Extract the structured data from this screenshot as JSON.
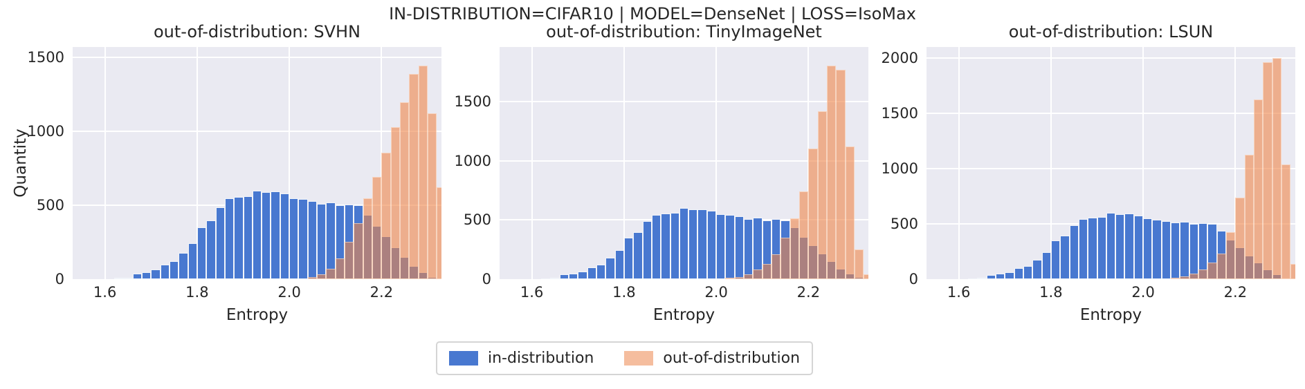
{
  "figure": {
    "title": "IN-DISTRIBUTION=CIFAR10 | MODEL=DenseNet | LOSS=IsoMax",
    "background": "#ffffff",
    "axes_background": "#eaeaf2",
    "grid_color": "#ffffff",
    "text_color": "#262626"
  },
  "colors": {
    "in_distribution": "#4878d0",
    "out_of_distribution_fill": "rgba(238,133,74,0.60)",
    "out_of_distribution_legend": "#f5bd9e"
  },
  "legend": {
    "items": [
      {
        "label": "in-distribution",
        "color_key": "in_distribution"
      },
      {
        "label": "out-of-distribution",
        "color_key": "out_of_distribution_legend"
      }
    ]
  },
  "chart_data": [
    {
      "type": "bar",
      "subtype": "histogram",
      "title": "out-of-distribution: SVHN",
      "xlabel": "Entropy",
      "ylabel": "Quantity",
      "xlim": [
        1.53,
        2.33
      ],
      "ylim": [
        0,
        1570
      ],
      "xticks": [
        {
          "v": 1.6,
          "label": "1.6"
        },
        {
          "v": 1.8,
          "label": "1.8"
        },
        {
          "v": 2.0,
          "label": "2.0"
        },
        {
          "v": 2.2,
          "label": "2.2"
        }
      ],
      "yticks": [
        {
          "v": 0,
          "label": "0"
        },
        {
          "v": 500,
          "label": "500"
        },
        {
          "v": 1000,
          "label": "1000"
        },
        {
          "v": 1500,
          "label": "1500"
        }
      ],
      "bin_width": 0.02,
      "grid": true,
      "series": [
        {
          "name": "in-distribution",
          "bins_start": 1.62,
          "values": [
            8,
            10,
            38,
            48,
            65,
            100,
            120,
            178,
            245,
            350,
            395,
            488,
            545,
            555,
            562,
            600,
            588,
            592,
            578,
            548,
            540,
            528,
            510,
            518,
            498,
            505,
            498,
            435,
            358,
            288,
            215,
            150,
            88,
            45,
            15
          ]
        },
        {
          "name": "out-of-distribution",
          "bins_start": 2.04,
          "values": [
            15,
            35,
            70,
            140,
            250,
            380,
            545,
            690,
            855,
            1030,
            1195,
            1390,
            1445,
            1120,
            620,
            150
          ]
        }
      ]
    },
    {
      "type": "bar",
      "subtype": "histogram",
      "title": "out-of-distribution: TinyImageNet",
      "xlabel": "Entropy",
      "ylabel": "",
      "xlim": [
        1.53,
        2.33
      ],
      "ylim": [
        0,
        1960
      ],
      "xticks": [
        {
          "v": 1.6,
          "label": "1.6"
        },
        {
          "v": 1.8,
          "label": "1.8"
        },
        {
          "v": 2.0,
          "label": "2.0"
        },
        {
          "v": 2.2,
          "label": "2.2"
        }
      ],
      "yticks": [
        {
          "v": 0,
          "label": "0"
        },
        {
          "v": 500,
          "label": "500"
        },
        {
          "v": 1000,
          "label": "1000"
        },
        {
          "v": 1500,
          "label": "1500"
        }
      ],
      "bin_width": 0.02,
      "grid": true,
      "series": [
        {
          "name": "in-distribution",
          "bins_start": 1.62,
          "values": [
            8,
            10,
            38,
            48,
            65,
            100,
            120,
            178,
            245,
            350,
            395,
            488,
            545,
            555,
            562,
            600,
            588,
            592,
            578,
            548,
            540,
            528,
            510,
            518,
            498,
            505,
            498,
            435,
            358,
            288,
            215,
            150,
            88,
            45,
            15
          ]
        },
        {
          "name": "out-of-distribution",
          "bins_start": 2.02,
          "values": [
            10,
            20,
            40,
            80,
            130,
            210,
            350,
            515,
            740,
            1100,
            1420,
            1800,
            1770,
            1120,
            250,
            40
          ]
        }
      ]
    },
    {
      "type": "bar",
      "subtype": "histogram",
      "title": "out-of-distribution: LSUN",
      "xlabel": "Entropy",
      "ylabel": "",
      "xlim": [
        1.53,
        2.33
      ],
      "ylim": [
        0,
        2100
      ],
      "xticks": [
        {
          "v": 1.6,
          "label": "1.6"
        },
        {
          "v": 1.8,
          "label": "1.8"
        },
        {
          "v": 2.0,
          "label": "2.0"
        },
        {
          "v": 2.2,
          "label": "2.2"
        }
      ],
      "yticks": [
        {
          "v": 0,
          "label": "0"
        },
        {
          "v": 500,
          "label": "500"
        },
        {
          "v": 1000,
          "label": "1000"
        },
        {
          "v": 1500,
          "label": "1500"
        },
        {
          "v": 2000,
          "label": "2000"
        }
      ],
      "bin_width": 0.02,
      "grid": true,
      "series": [
        {
          "name": "in-distribution",
          "bins_start": 1.62,
          "values": [
            8,
            10,
            38,
            48,
            65,
            100,
            120,
            178,
            245,
            350,
            395,
            488,
            545,
            555,
            562,
            600,
            588,
            592,
            578,
            548,
            540,
            528,
            510,
            518,
            498,
            505,
            498,
            435,
            358,
            288,
            215,
            150,
            88,
            45,
            15
          ]
        },
        {
          "name": "out-of-distribution",
          "bins_start": 2.06,
          "values": [
            10,
            25,
            50,
            90,
            150,
            230,
            425,
            740,
            1125,
            1625,
            1965,
            2000,
            1040,
            140
          ]
        }
      ]
    }
  ]
}
